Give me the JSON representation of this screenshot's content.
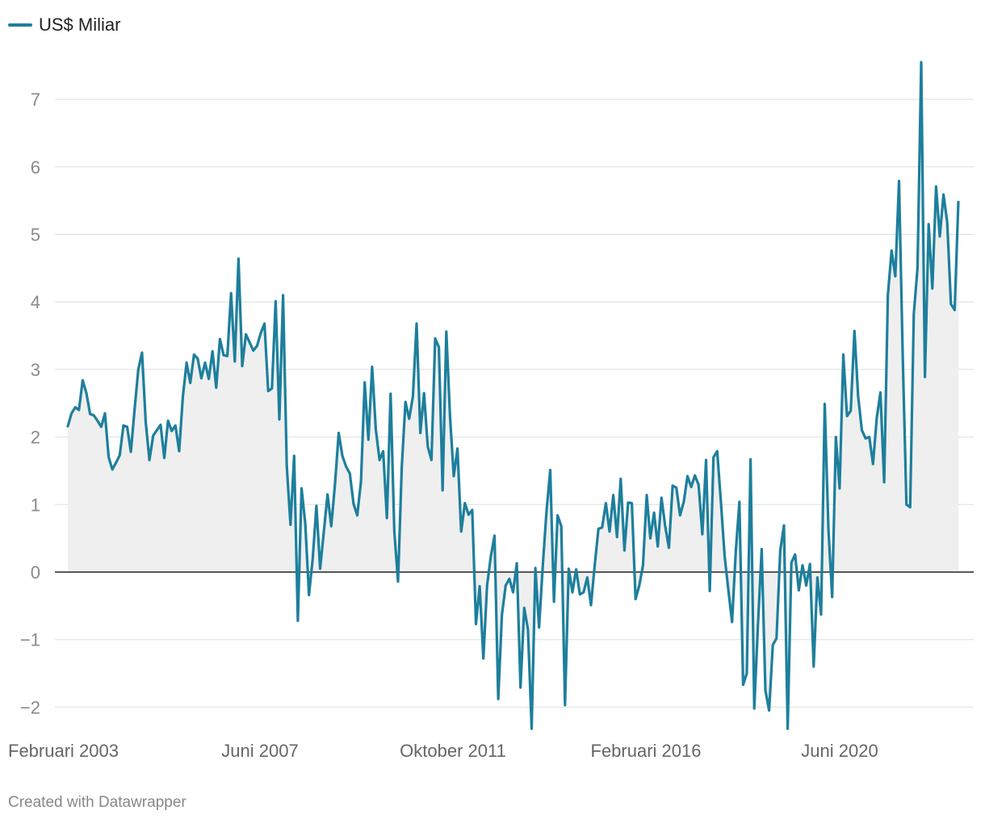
{
  "legend": {
    "label": "US$ Miliar",
    "color": "#1d7f9c"
  },
  "footer": {
    "credit": "Created with Datawrapper"
  },
  "chart_data": {
    "type": "area",
    "title": "",
    "xlabel": "",
    "ylabel": "",
    "series": [
      {
        "name": "US$ Miliar",
        "color": "#1d7f9c",
        "values": [
          2.16,
          2.35,
          2.44,
          2.4,
          2.84,
          2.65,
          2.34,
          2.32,
          2.24,
          2.15,
          2.35,
          1.7,
          1.52,
          1.62,
          1.73,
          2.17,
          2.15,
          1.78,
          2.41,
          3.0,
          3.25,
          2.22,
          1.66,
          2.02,
          2.1,
          2.18,
          1.69,
          2.24,
          2.09,
          2.17,
          1.79,
          2.6,
          3.1,
          2.8,
          3.22,
          3.16,
          2.87,
          3.1,
          2.86,
          3.27,
          2.73,
          3.45,
          3.21,
          3.2,
          4.13,
          3.12,
          4.64,
          3.05,
          3.52,
          3.4,
          3.28,
          3.35,
          3.54,
          3.68,
          2.68,
          2.72,
          4.01,
          2.26,
          4.1,
          1.57,
          0.7,
          1.72,
          -0.72,
          1.24,
          0.72,
          -0.34,
          0.2,
          0.98,
          0.05,
          0.6,
          1.15,
          0.68,
          1.3,
          2.06,
          1.72,
          1.56,
          1.46,
          1.01,
          0.84,
          1.34,
          2.81,
          1.96,
          3.04,
          2.11,
          1.66,
          1.79,
          0.8,
          2.64,
          0.6,
          -0.14,
          1.55,
          2.52,
          2.27,
          2.6,
          3.68,
          2.06,
          2.65,
          1.86,
          1.66,
          3.46,
          3.33,
          1.21,
          3.56,
          2.3,
          1.42,
          1.83,
          0.6,
          1.02,
          0.85,
          0.92,
          -0.77,
          -0.21,
          -1.28,
          -0.2,
          0.23,
          0.54,
          -1.88,
          -0.63,
          -0.2,
          -0.1,
          -0.3,
          0.13,
          -1.71,
          -0.53,
          -0.85,
          -2.32,
          0.06,
          -0.82,
          0.1,
          0.9,
          1.51,
          -0.44,
          0.84,
          0.68,
          -1.97,
          0.05,
          -0.3,
          0.04,
          -0.33,
          -0.3,
          -0.08,
          -0.49,
          0.1,
          0.64,
          0.66,
          1.02,
          0.6,
          1.14,
          0.52,
          1.38,
          0.32,
          1.03,
          1.02,
          -0.4,
          -0.2,
          0.1,
          1.14,
          0.5,
          0.88,
          0.38,
          1.1,
          0.68,
          0.36,
          1.28,
          1.25,
          0.84,
          1.04,
          1.42,
          1.26,
          1.43,
          1.29,
          0.56,
          1.66,
          -0.28,
          1.7,
          1.79,
          1.04,
          0.24,
          -0.26,
          -0.74,
          0.3,
          1.04,
          -1.67,
          -1.5,
          1.67,
          -2.02,
          -0.78,
          0.34,
          -1.75,
          -2.05,
          -1.08,
          -0.98,
          0.32,
          0.69,
          -2.32,
          0.14,
          0.26,
          -0.27,
          0.1,
          -0.2,
          0.12,
          -1.4,
          -0.08,
          -0.63,
          2.49,
          0.63,
          -0.37,
          2.0,
          1.24,
          3.22,
          2.31,
          2.39,
          3.57,
          2.6,
          2.1,
          1.98,
          2.0,
          1.6,
          2.28,
          2.66,
          1.33,
          4.1,
          4.76,
          4.38,
          5.79,
          3.2,
          1.0,
          0.96,
          3.82,
          4.5,
          7.55,
          2.89,
          5.15,
          4.2,
          5.71,
          4.97,
          5.59,
          5.18,
          3.97,
          3.88,
          5.48
        ]
      }
    ],
    "x_tick_labels": [
      "Februari 2003",
      "Juni 2007",
      "Oktober 2011",
      "Februari 2016",
      "Juni 2020"
    ],
    "y_ticks": [
      -2,
      -1,
      0,
      1,
      2,
      3,
      4,
      5,
      6,
      7
    ],
    "y_tick_labels": [
      "−2",
      "−1",
      "0",
      "1",
      "2",
      "3",
      "4",
      "5",
      "6",
      "7"
    ],
    "ylim": [
      -2.4,
      7.7
    ],
    "grid": true,
    "legend_position": "top-left"
  }
}
